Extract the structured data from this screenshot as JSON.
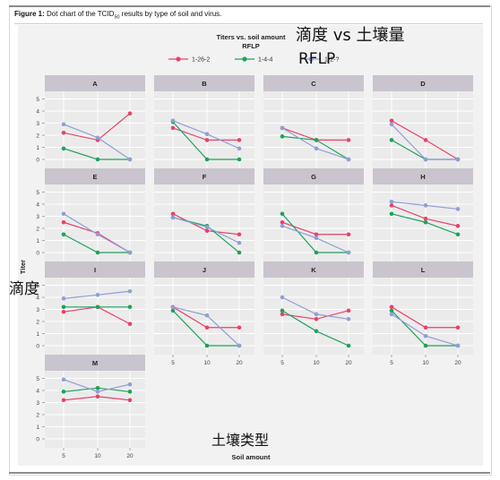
{
  "caption": {
    "label": "Figure 1:",
    "text_pre": "Dot chart of the TCID",
    "text_sub": "50",
    "text_post": " results by type of soil and virus."
  },
  "overlays": {
    "title_cn": "滴度 vs 土壤量",
    "legend_cn": "RFLP",
    "ylabel_cn": "滴度",
    "xlabel_cn": "土壤类型"
  },
  "colors": {
    "s1": "#e8426a",
    "s2": "#1da35a",
    "s3": "#8f9fd6",
    "strip": "#c9c4cd",
    "panel_bg": "#ebebeb",
    "grid": "#ffffff"
  },
  "chart_data": {
    "type": "line",
    "title": "Titers vs. soil amount",
    "legend_title": "RFLP",
    "xlabel": "Soil amount",
    "ylabel": "Titer",
    "x": [
      "5",
      "10",
      "20"
    ],
    "ylim": [
      0,
      5
    ],
    "yticks": [
      "0",
      "1",
      "2",
      "3",
      "4",
      "5"
    ],
    "legend_position": "top",
    "series_names": [
      "1-26-2",
      "1-4-4",
      "1-2-?"
    ],
    "panels": [
      {
        "label": "A",
        "series": [
          [
            2.2,
            1.6,
            3.8
          ],
          [
            0.9,
            0.0,
            0.0
          ],
          [
            2.9,
            1.8,
            0.0
          ]
        ]
      },
      {
        "label": "B",
        "series": [
          [
            2.6,
            1.6,
            1.6
          ],
          [
            3.1,
            0.0,
            0.0
          ],
          [
            3.2,
            2.1,
            0.9
          ]
        ]
      },
      {
        "label": "C",
        "series": [
          [
            2.6,
            1.6,
            1.6
          ],
          [
            1.9,
            1.6,
            0.0
          ],
          [
            2.6,
            0.9,
            0.0
          ]
        ]
      },
      {
        "label": "D",
        "series": [
          [
            3.2,
            1.6,
            0.0
          ],
          [
            1.6,
            0.0,
            0.0
          ],
          [
            2.9,
            0.0,
            0.0
          ]
        ]
      },
      {
        "label": "E",
        "series": [
          [
            2.5,
            1.6,
            0.0
          ],
          [
            1.5,
            0.0,
            0.0
          ],
          [
            3.2,
            1.5,
            0.0
          ]
        ]
      },
      {
        "label": "F",
        "series": [
          [
            3.2,
            1.8,
            1.5
          ],
          [
            2.9,
            2.2,
            0.0
          ],
          [
            2.9,
            2.1,
            0.8
          ]
        ]
      },
      {
        "label": "G",
        "series": [
          [
            2.5,
            1.5,
            1.5
          ],
          [
            3.2,
            0.0,
            0.0
          ],
          [
            2.2,
            1.2,
            0.0
          ]
        ]
      },
      {
        "label": "H",
        "series": [
          [
            3.9,
            2.8,
            2.2
          ],
          [
            3.2,
            2.5,
            1.5
          ],
          [
            4.2,
            3.9,
            3.6
          ]
        ]
      },
      {
        "label": "I",
        "series": [
          [
            2.8,
            3.2,
            1.8
          ],
          [
            3.2,
            3.2,
            3.2
          ],
          [
            3.9,
            4.2,
            4.5
          ]
        ]
      },
      {
        "label": "J",
        "series": [
          [
            3.2,
            1.5,
            1.5
          ],
          [
            2.9,
            0.0,
            0.0
          ],
          [
            3.2,
            2.5,
            0.0
          ]
        ]
      },
      {
        "label": "K",
        "series": [
          [
            2.6,
            2.2,
            2.9
          ],
          [
            2.9,
            1.2,
            0.0
          ],
          [
            4.0,
            2.6,
            2.2
          ]
        ]
      },
      {
        "label": "L",
        "series": [
          [
            3.2,
            1.5,
            1.5
          ],
          [
            2.9,
            0.0,
            0.0
          ],
          [
            2.6,
            0.8,
            0.0
          ]
        ]
      },
      {
        "label": "M",
        "series": [
          [
            3.2,
            3.5,
            3.2
          ],
          [
            3.9,
            4.2,
            3.9
          ],
          [
            4.9,
            3.9,
            4.5
          ]
        ]
      }
    ]
  }
}
